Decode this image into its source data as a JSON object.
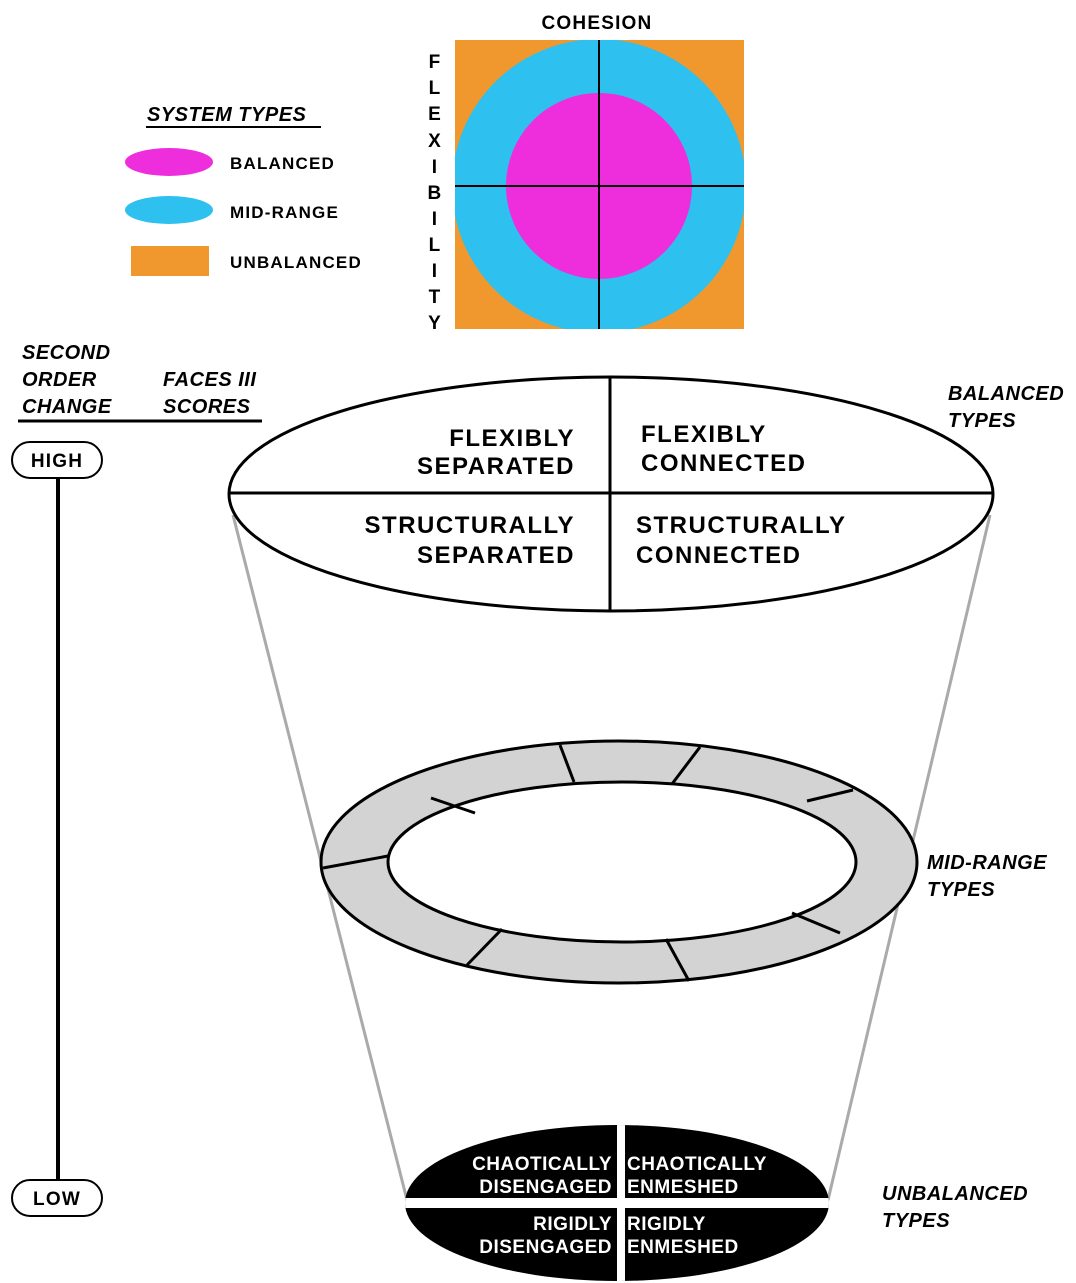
{
  "model": {
    "cohesion_label": "COHESION",
    "flexibility_letters": [
      "F",
      "L",
      "E",
      "X",
      "I",
      "B",
      "I",
      "L",
      "I",
      "T",
      "Y"
    ]
  },
  "legend": {
    "title": "SYSTEM TYPES",
    "items": [
      {
        "label": "BALANCED",
        "color": "#ee2edc"
      },
      {
        "label": "MID-RANGE",
        "color": "#2ec0ee"
      },
      {
        "label": "UNBALANCED",
        "color": "#f0982e"
      }
    ]
  },
  "scale": {
    "header_left": [
      "SECOND",
      "ORDER",
      "CHANGE"
    ],
    "header_right": [
      "FACES III",
      "SCORES"
    ],
    "high": "HIGH",
    "low": "LOW"
  },
  "balanced": {
    "label": [
      "BALANCED",
      "TYPES"
    ],
    "cells": [
      [
        "FLEXIBLY",
        "SEPARATED"
      ],
      [
        "FLEXIBLY",
        "CONNECTED"
      ],
      [
        "STRUCTURALLY",
        "SEPARATED"
      ],
      [
        "STRUCTURALLY",
        "CONNECTED"
      ]
    ]
  },
  "midrange": {
    "label": [
      "MID-RANGE",
      "TYPES"
    ]
  },
  "unbalanced": {
    "label": [
      "UNBALANCED",
      "TYPES"
    ],
    "cells": [
      [
        "CHAOTICALLY",
        "DISENGAGED"
      ],
      [
        "CHAOTICALLY",
        "ENMESHED"
      ],
      [
        "RIGIDLY",
        "DISENGAGED"
      ],
      [
        "RIGIDLY",
        "ENMESHED"
      ]
    ]
  }
}
